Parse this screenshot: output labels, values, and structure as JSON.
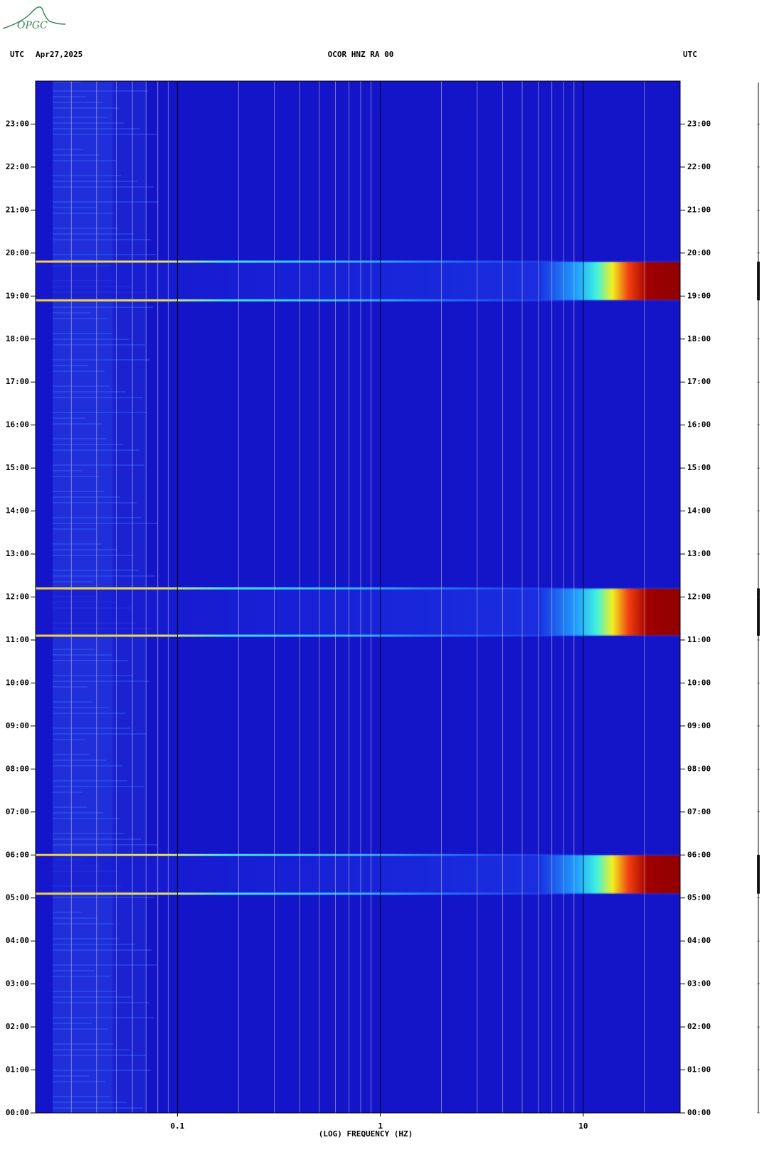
{
  "logo": "OPGC",
  "chart_data": {
    "type": "spectrogram",
    "title": "OCOR HNZ RA 00",
    "timezone": "UTC",
    "date": "Apr27,2025",
    "x_label": "(LOG) FREQUENCY (HZ)",
    "xscale": "log",
    "xlim": [
      0.02,
      30
    ],
    "xticks": [
      0.1,
      1,
      10
    ],
    "xgrid": [
      0.03,
      0.04,
      0.05,
      0.06,
      0.07,
      0.08,
      0.09,
      0.1,
      0.2,
      0.3,
      0.4,
      0.5,
      0.6,
      0.7,
      0.8,
      0.9,
      1,
      2,
      3,
      4,
      5,
      6,
      7,
      8,
      9,
      10,
      20
    ],
    "ylim": [
      0,
      24
    ],
    "yticks": [
      {
        "value": 0,
        "label": "00:00"
      },
      {
        "value": 1,
        "label": "01:00"
      },
      {
        "value": 2,
        "label": "02:00"
      },
      {
        "value": 3,
        "label": "03:00"
      },
      {
        "value": 4,
        "label": "04:00"
      },
      {
        "value": 5,
        "label": "05:00"
      },
      {
        "value": 6,
        "label": "06:00"
      },
      {
        "value": 7,
        "label": "07:00"
      },
      {
        "value": 8,
        "label": "08:00"
      },
      {
        "value": 9,
        "label": "09:00"
      },
      {
        "value": 10,
        "label": "10:00"
      },
      {
        "value": 11,
        "label": "11:00"
      },
      {
        "value": 12,
        "label": "12:00"
      },
      {
        "value": 13,
        "label": "13:00"
      },
      {
        "value": 14,
        "label": "14:00"
      },
      {
        "value": 15,
        "label": "15:00"
      },
      {
        "value": 16,
        "label": "16:00"
      },
      {
        "value": 17,
        "label": "17:00"
      },
      {
        "value": 18,
        "label": "18:00"
      },
      {
        "value": 19,
        "label": "19:00"
      },
      {
        "value": 20,
        "label": "20:00"
      },
      {
        "value": 21,
        "label": "21:00"
      },
      {
        "value": 22,
        "label": "22:00"
      },
      {
        "value": 23,
        "label": "23:00"
      }
    ],
    "events": [
      {
        "start": 5.1,
        "end": 6.0
      },
      {
        "start": 11.1,
        "end": 12.2
      },
      {
        "start": 18.9,
        "end": 19.8
      }
    ],
    "background_color": "#1414c8"
  }
}
